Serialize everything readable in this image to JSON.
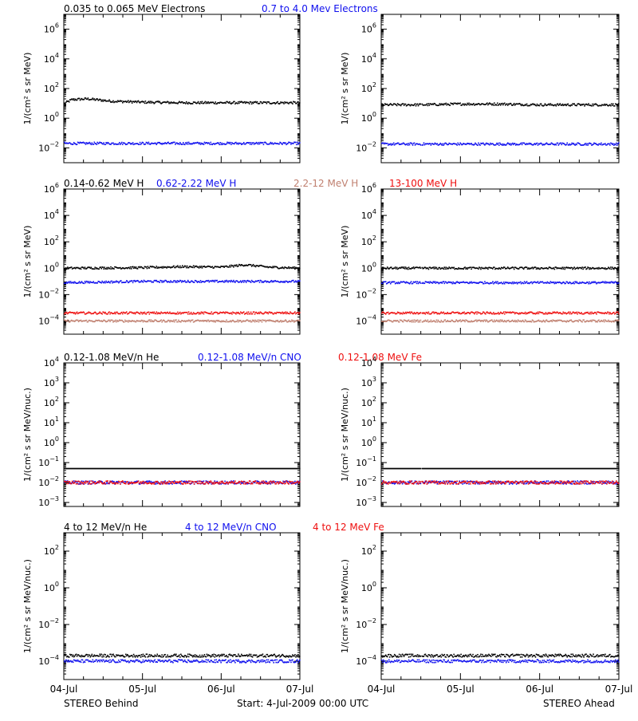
{
  "colors": {
    "black": "#000000",
    "blue": "#1010ee",
    "salmon": "#c08070",
    "red": "#ee1010"
  },
  "footer": {
    "left": "STEREO Behind",
    "center": "Start:  4-Jul-2009 00:00 UTC",
    "right": "STEREO Ahead"
  },
  "x_ticks": [
    "04-Jul",
    "05-Jul",
    "06-Jul",
    "07-Jul"
  ],
  "chart_data": [
    {
      "row": 1,
      "type": "scatter",
      "xlabel": "",
      "ylabel": "1/(cm² s sr MeV)",
      "x": [
        0,
        3
      ],
      "ylim_log10": [
        -3,
        7
      ],
      "ticks_log10": [
        -2,
        0,
        2,
        4,
        6
      ],
      "legend": [
        {
          "text": "0.035 to 0.065 MeV Electrons",
          "color": "black"
        },
        {
          "text": "0.7 to 4.0 Mev Electrons",
          "color": "blue"
        }
      ],
      "series": [
        {
          "name": "0.035 to 0.065 MeV Electrons",
          "color": "black",
          "behind": [
            [
              0,
              10
            ],
            [
              0.1,
              18
            ],
            [
              0.3,
              20
            ],
            [
              0.6,
              14
            ],
            [
              1.0,
              12
            ],
            [
              1.5,
              11
            ],
            [
              2.0,
              11
            ],
            [
              2.5,
              11
            ],
            [
              3,
              11
            ]
          ],
          "ahead": [
            [
              0,
              8
            ],
            [
              0.5,
              8
            ],
            [
              1.0,
              9
            ],
            [
              1.5,
              9
            ],
            [
              2.0,
              8
            ],
            [
              2.5,
              8
            ],
            [
              3,
              8
            ]
          ]
        },
        {
          "name": "0.7 to 4.0 Mev Electrons",
          "color": "blue",
          "behind": [
            [
              0,
              0.02
            ],
            [
              1,
              0.02
            ],
            [
              2,
              0.02
            ],
            [
              3,
              0.02
            ]
          ],
          "ahead": [
            [
              0,
              0.018
            ],
            [
              1,
              0.018
            ],
            [
              2,
              0.018
            ],
            [
              3,
              0.018
            ]
          ]
        }
      ]
    },
    {
      "row": 2,
      "type": "scatter",
      "xlabel": "",
      "ylabel": "1/(cm² s sr MeV)",
      "x": [
        0,
        3
      ],
      "ylim_log10": [
        -5,
        6
      ],
      "ticks_log10": [
        -4,
        -2,
        0,
        2,
        4,
        6
      ],
      "legend": [
        {
          "text": "0.14-0.62 MeV H",
          "color": "black"
        },
        {
          "text": "0.62-2.22 MeV H",
          "color": "blue"
        },
        {
          "text": "2.2-12 MeV H",
          "color": "salmon"
        },
        {
          "text": "13-100 MeV H",
          "color": "red"
        }
      ],
      "series": [
        {
          "name": "0.14-0.62 MeV H",
          "color": "black",
          "behind": [
            [
              0,
              1.0
            ],
            [
              1,
              1.1
            ],
            [
              1.5,
              1.3
            ],
            [
              2.0,
              1.2
            ],
            [
              2.3,
              1.8
            ],
            [
              2.6,
              1.2
            ],
            [
              3,
              1.0
            ]
          ],
          "ahead": [
            [
              0,
              1.0
            ],
            [
              1,
              1.0
            ],
            [
              2,
              1.0
            ],
            [
              3,
              1.0
            ]
          ]
        },
        {
          "name": "0.62-2.22 MeV H",
          "color": "blue",
          "behind": [
            [
              0,
              0.08
            ],
            [
              1,
              0.1
            ],
            [
              2,
              0.1
            ],
            [
              3,
              0.1
            ]
          ],
          "ahead": [
            [
              0,
              0.08
            ],
            [
              1,
              0.08
            ],
            [
              2,
              0.08
            ],
            [
              3,
              0.08
            ]
          ]
        },
        {
          "name": "2.2-12 MeV H",
          "color": "salmon",
          "behind": [
            [
              0,
              0.0001
            ],
            [
              3,
              0.0001
            ]
          ],
          "ahead": [
            [
              0,
              0.0001
            ],
            [
              3,
              0.0001
            ]
          ]
        },
        {
          "name": "13-100 MeV H",
          "color": "red",
          "behind": [
            [
              0,
              0.0004
            ],
            [
              3,
              0.0004
            ]
          ],
          "ahead": [
            [
              0,
              0.0004
            ],
            [
              3,
              0.0004
            ]
          ]
        }
      ]
    },
    {
      "row": 3,
      "type": "scatter",
      "xlabel": "",
      "ylabel": "1/(cm² s sr MeV/nuc.)",
      "x": [
        0,
        3
      ],
      "ylim_log10": [
        -3.2,
        4
      ],
      "ticks_log10": [
        -3,
        -2,
        -1,
        0,
        1,
        2,
        3,
        4
      ],
      "legend": [
        {
          "text": "0.12-1.08 MeV/n He",
          "color": "black"
        },
        {
          "text": "0.12-1.08 MeV/n CNO",
          "color": "blue"
        },
        {
          "text": "0.12-1.08 MeV Fe",
          "color": "red"
        }
      ],
      "series": [
        {
          "name": "0.12-1.08 MeV/n He",
          "color": "black",
          "behind": [
            [
              0,
              0.05
            ],
            [
              3,
              0.05
            ]
          ],
          "ahead": [
            [
              0,
              0.05
            ],
            [
              3,
              0.05
            ]
          ]
        },
        {
          "name": "0.12-1.08 MeV/n CNO",
          "color": "blue",
          "behind": [
            [
              0,
              0.01
            ],
            [
              3,
              0.01
            ]
          ],
          "ahead": [
            [
              0,
              0.01
            ],
            [
              3,
              0.01
            ]
          ]
        },
        {
          "name": "0.12-1.08 MeV Fe",
          "color": "red",
          "behind": [
            [
              0,
              0.01
            ],
            [
              3,
              0.01
            ]
          ],
          "ahead": [
            [
              0,
              0.01
            ],
            [
              3,
              0.01
            ]
          ]
        }
      ]
    },
    {
      "row": 4,
      "type": "scatter",
      "xlabel": "",
      "ylabel": "1/(cm² s sr MeV/nuc.)",
      "x": [
        0,
        3
      ],
      "ylim_log10": [
        -5,
        3
      ],
      "ticks_log10": [
        -4,
        -2,
        0,
        2
      ],
      "legend": [
        {
          "text": "4 to 12 MeV/n He",
          "color": "black"
        },
        {
          "text": "4 to 12 MeV/n CNO",
          "color": "blue"
        },
        {
          "text": "4 to 12 MeV Fe",
          "color": "red"
        }
      ],
      "series": [
        {
          "name": "4 to 12 MeV/n He",
          "color": "black",
          "behind": [
            [
              0,
              0.0002
            ],
            [
              3,
              0.0002
            ]
          ],
          "ahead": [
            [
              0,
              0.0002
            ],
            [
              3,
              0.0002
            ]
          ]
        },
        {
          "name": "4 to 12 MeV/n CNO",
          "color": "blue",
          "behind": [
            [
              0,
              0.0001
            ],
            [
              3,
              0.0001
            ]
          ],
          "ahead": [
            [
              0,
              0.0001
            ],
            [
              3,
              0.0001
            ]
          ]
        }
      ]
    }
  ]
}
